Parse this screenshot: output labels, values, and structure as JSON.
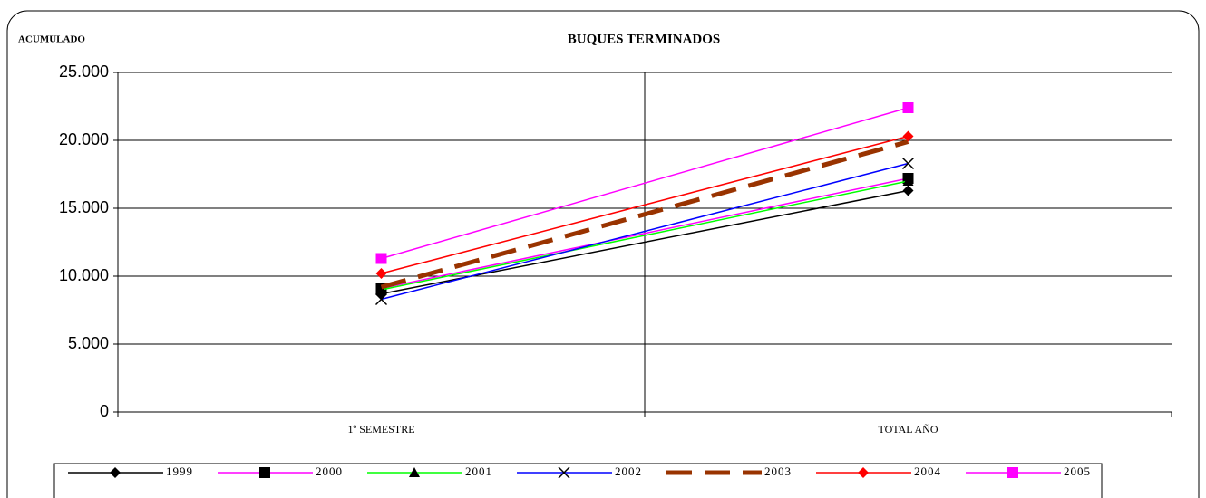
{
  "chart_data": {
    "type": "line",
    "title": "BUQUES TERMINADOS",
    "y_label": "ACUMULADO",
    "categories": [
      "1º SEMESTRE",
      "TOTAL AÑO"
    ],
    "ylim": [
      0,
      25000
    ],
    "yticks": [
      0,
      {
        "value": 5000,
        "label": "5.000"
      },
      {
        "value": 10000,
        "label": "10.000"
      },
      {
        "value": 15000,
        "label": "15.000"
      },
      {
        "value": 20000,
        "label": "20.000"
      },
      {
        "value": 25000,
        "label": "25.000"
      }
    ],
    "grid": true,
    "legend": "bottom",
    "series": [
      {
        "name": "1999",
        "color": "#000000",
        "marker": "diamond",
        "marker_color": "#000000",
        "values": [
          8700,
          16300
        ]
      },
      {
        "name": "2000",
        "color": "#ff00ff",
        "marker": "square",
        "marker_color": "#000000",
        "values": [
          9100,
          17200
        ]
      },
      {
        "name": "2001",
        "color": "#00ff00",
        "marker": "triangle",
        "marker_color": "#000000",
        "values": [
          9000,
          17000
        ]
      },
      {
        "name": "2002",
        "color": "#0000ff",
        "marker": "x",
        "marker_color": "#000000",
        "values": [
          8300,
          18300
        ]
      },
      {
        "name": "2003",
        "color": "#993300",
        "marker": "none",
        "dash": true,
        "values": [
          9200,
          19900
        ]
      },
      {
        "name": "2004",
        "color": "#ff0000",
        "marker": "diamond",
        "marker_color": "#ff0000",
        "values": [
          10200,
          20300
        ]
      },
      {
        "name": "2005",
        "color": "#ff00ff",
        "marker": "square",
        "marker_color": "#ff00ff",
        "values": [
          11300,
          22400
        ]
      }
    ]
  }
}
